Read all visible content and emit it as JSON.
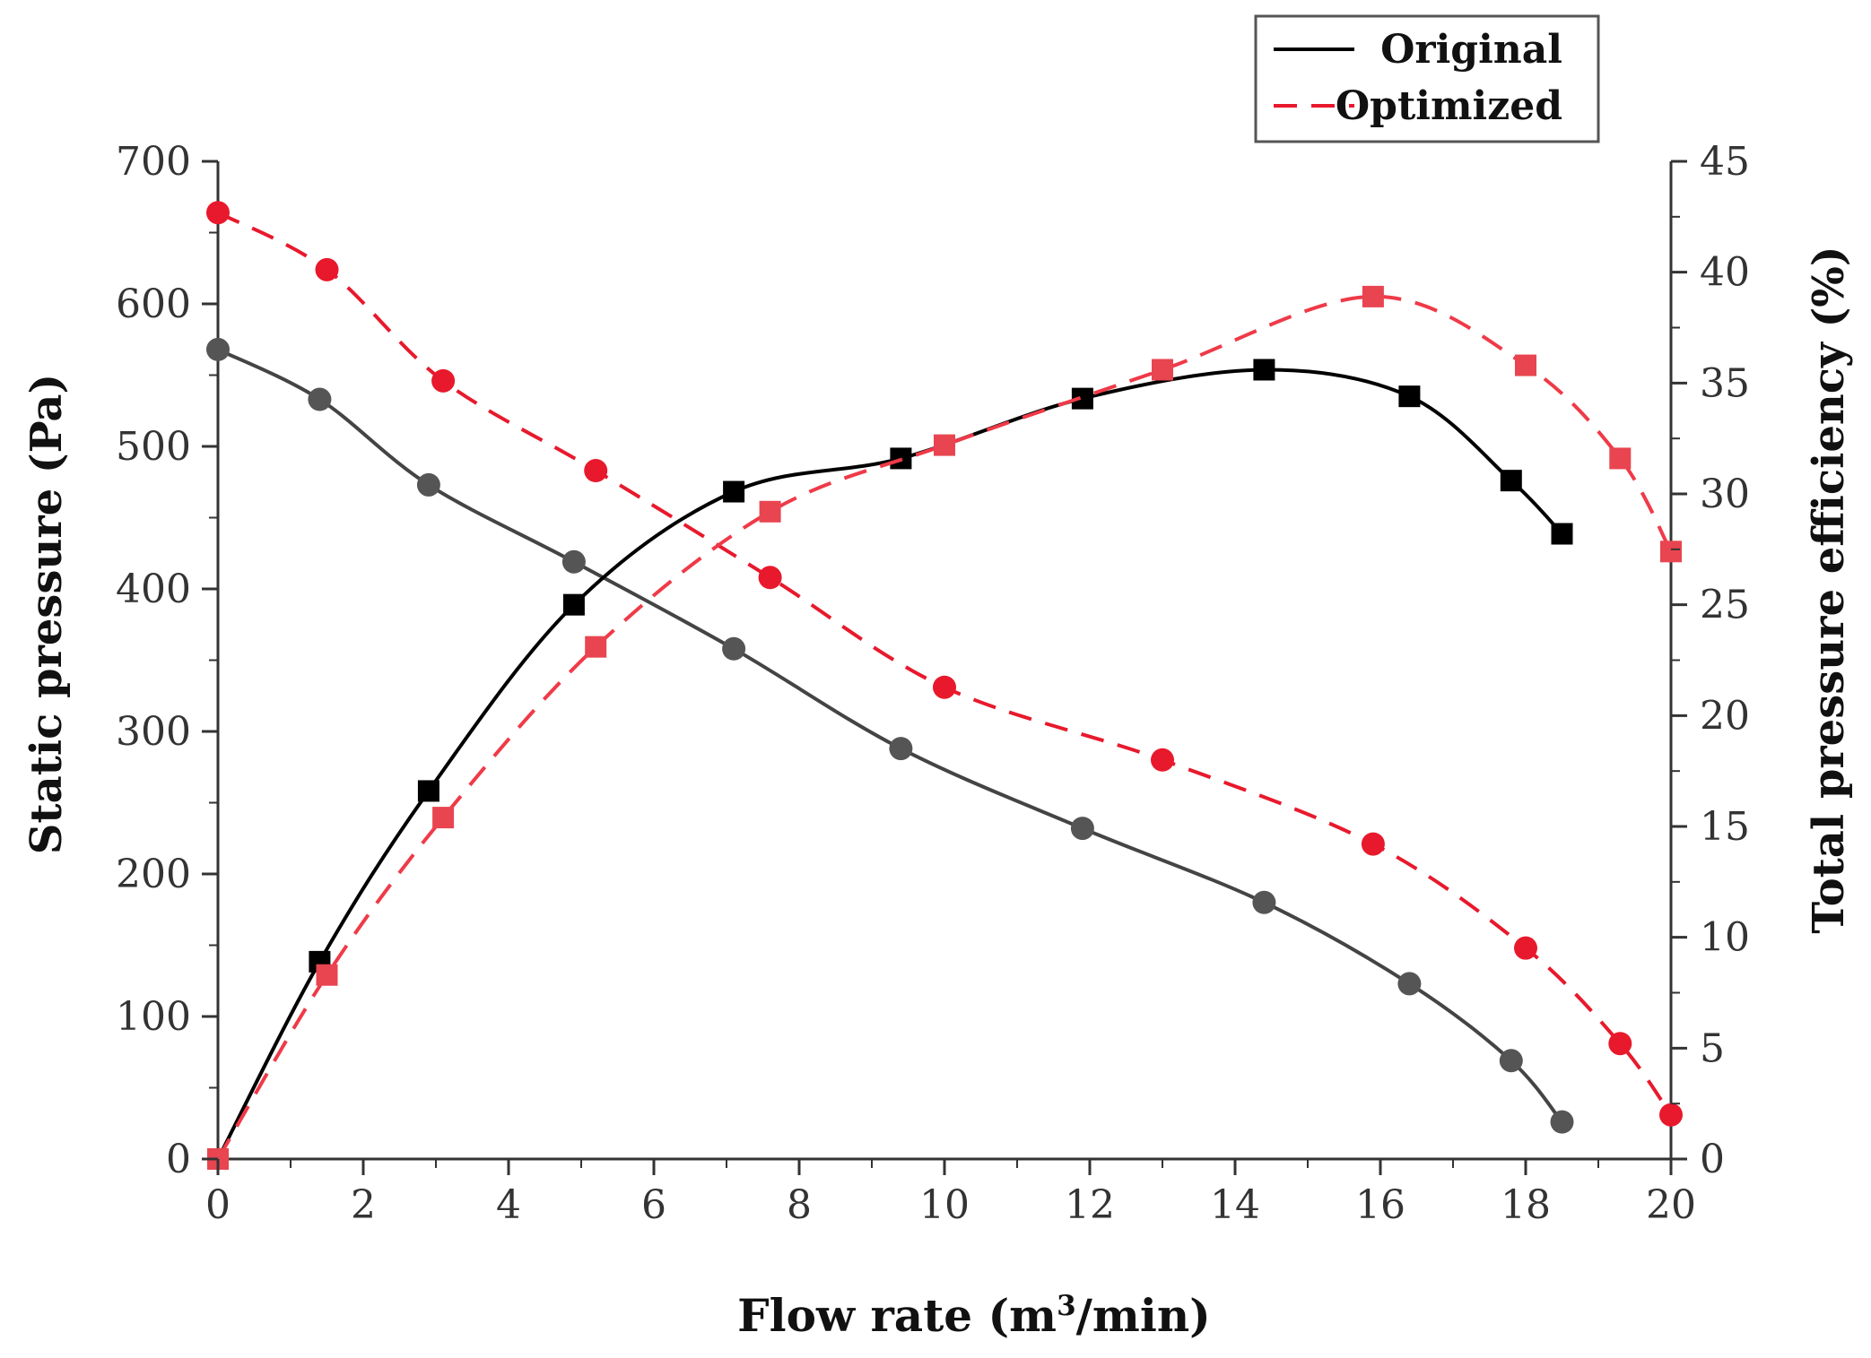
{
  "chart_data": {
    "type": "line",
    "xlabel_main": "Flow rate (m",
    "xlabel_sup": "3",
    "xlabel_end": "/min)",
    "ylabel_left": "Static pressure (Pa)",
    "ylabel_right": "Total pressure efficiency (%)",
    "xlim": [
      0,
      20
    ],
    "ylim_left": [
      0,
      700
    ],
    "ylim_right": [
      0,
      45
    ],
    "x_ticks": [
      "0",
      "2",
      "4",
      "6",
      "8",
      "10",
      "12",
      "14",
      "16",
      "18",
      "20"
    ],
    "y_left_ticks": [
      "0",
      "100",
      "200",
      "300",
      "400",
      "500",
      "600",
      "700"
    ],
    "y_right_ticks": [
      "0",
      "5",
      "10",
      "15",
      "20",
      "25",
      "30",
      "35",
      "40",
      "45"
    ],
    "legend": {
      "position": "top-right",
      "entries": [
        {
          "label": "Original",
          "style": "solid",
          "color": "#000000"
        },
        {
          "label": "Optimized",
          "style": "dashed",
          "color": "#e8192c"
        }
      ]
    },
    "series": [
      {
        "group": "Original",
        "axis": "left",
        "marker": "circle",
        "style": "solid",
        "line_color": "#444444",
        "marker_color": "#555555",
        "x": [
          0,
          1.4,
          2.9,
          4.9,
          7.1,
          9.4,
          11.9,
          14.4,
          16.4,
          17.8,
          18.5
        ],
        "y": [
          568,
          533,
          473,
          419,
          358,
          288,
          232,
          180,
          123,
          69,
          26
        ]
      },
      {
        "group": "Original",
        "axis": "right",
        "marker": "square",
        "style": "solid",
        "line_color": "#000000",
        "marker_color": "#000000",
        "x": [
          0,
          1.4,
          2.9,
          4.9,
          7.1,
          9.4,
          11.9,
          14.4,
          16.4,
          17.8,
          18.5
        ],
        "y": [
          0,
          8.9,
          16.6,
          25.0,
          30.1,
          31.6,
          34.3,
          35.6,
          34.4,
          30.6,
          28.2
        ]
      },
      {
        "group": "Optimized",
        "axis": "left",
        "marker": "circle",
        "style": "dashed",
        "line_color": "#e8192c",
        "marker_color": "#e8192c",
        "x": [
          0,
          1.5,
          3.1,
          5.2,
          7.6,
          10.0,
          13.0,
          15.9,
          18.0,
          19.3,
          20.0
        ],
        "y": [
          664,
          624,
          546,
          483,
          408,
          331,
          280,
          221,
          148,
          81,
          31
        ]
      },
      {
        "group": "Optimized",
        "axis": "right",
        "marker": "square",
        "style": "dashed",
        "line_color": "#ef3a48",
        "marker_color": "#e84550",
        "x": [
          0,
          1.5,
          3.1,
          5.2,
          7.6,
          10.0,
          13.0,
          15.9,
          18.0,
          19.3,
          20.0
        ],
        "y": [
          0,
          8.3,
          15.4,
          23.1,
          29.2,
          32.2,
          35.6,
          38.9,
          35.8,
          31.6,
          27.4
        ]
      }
    ]
  }
}
